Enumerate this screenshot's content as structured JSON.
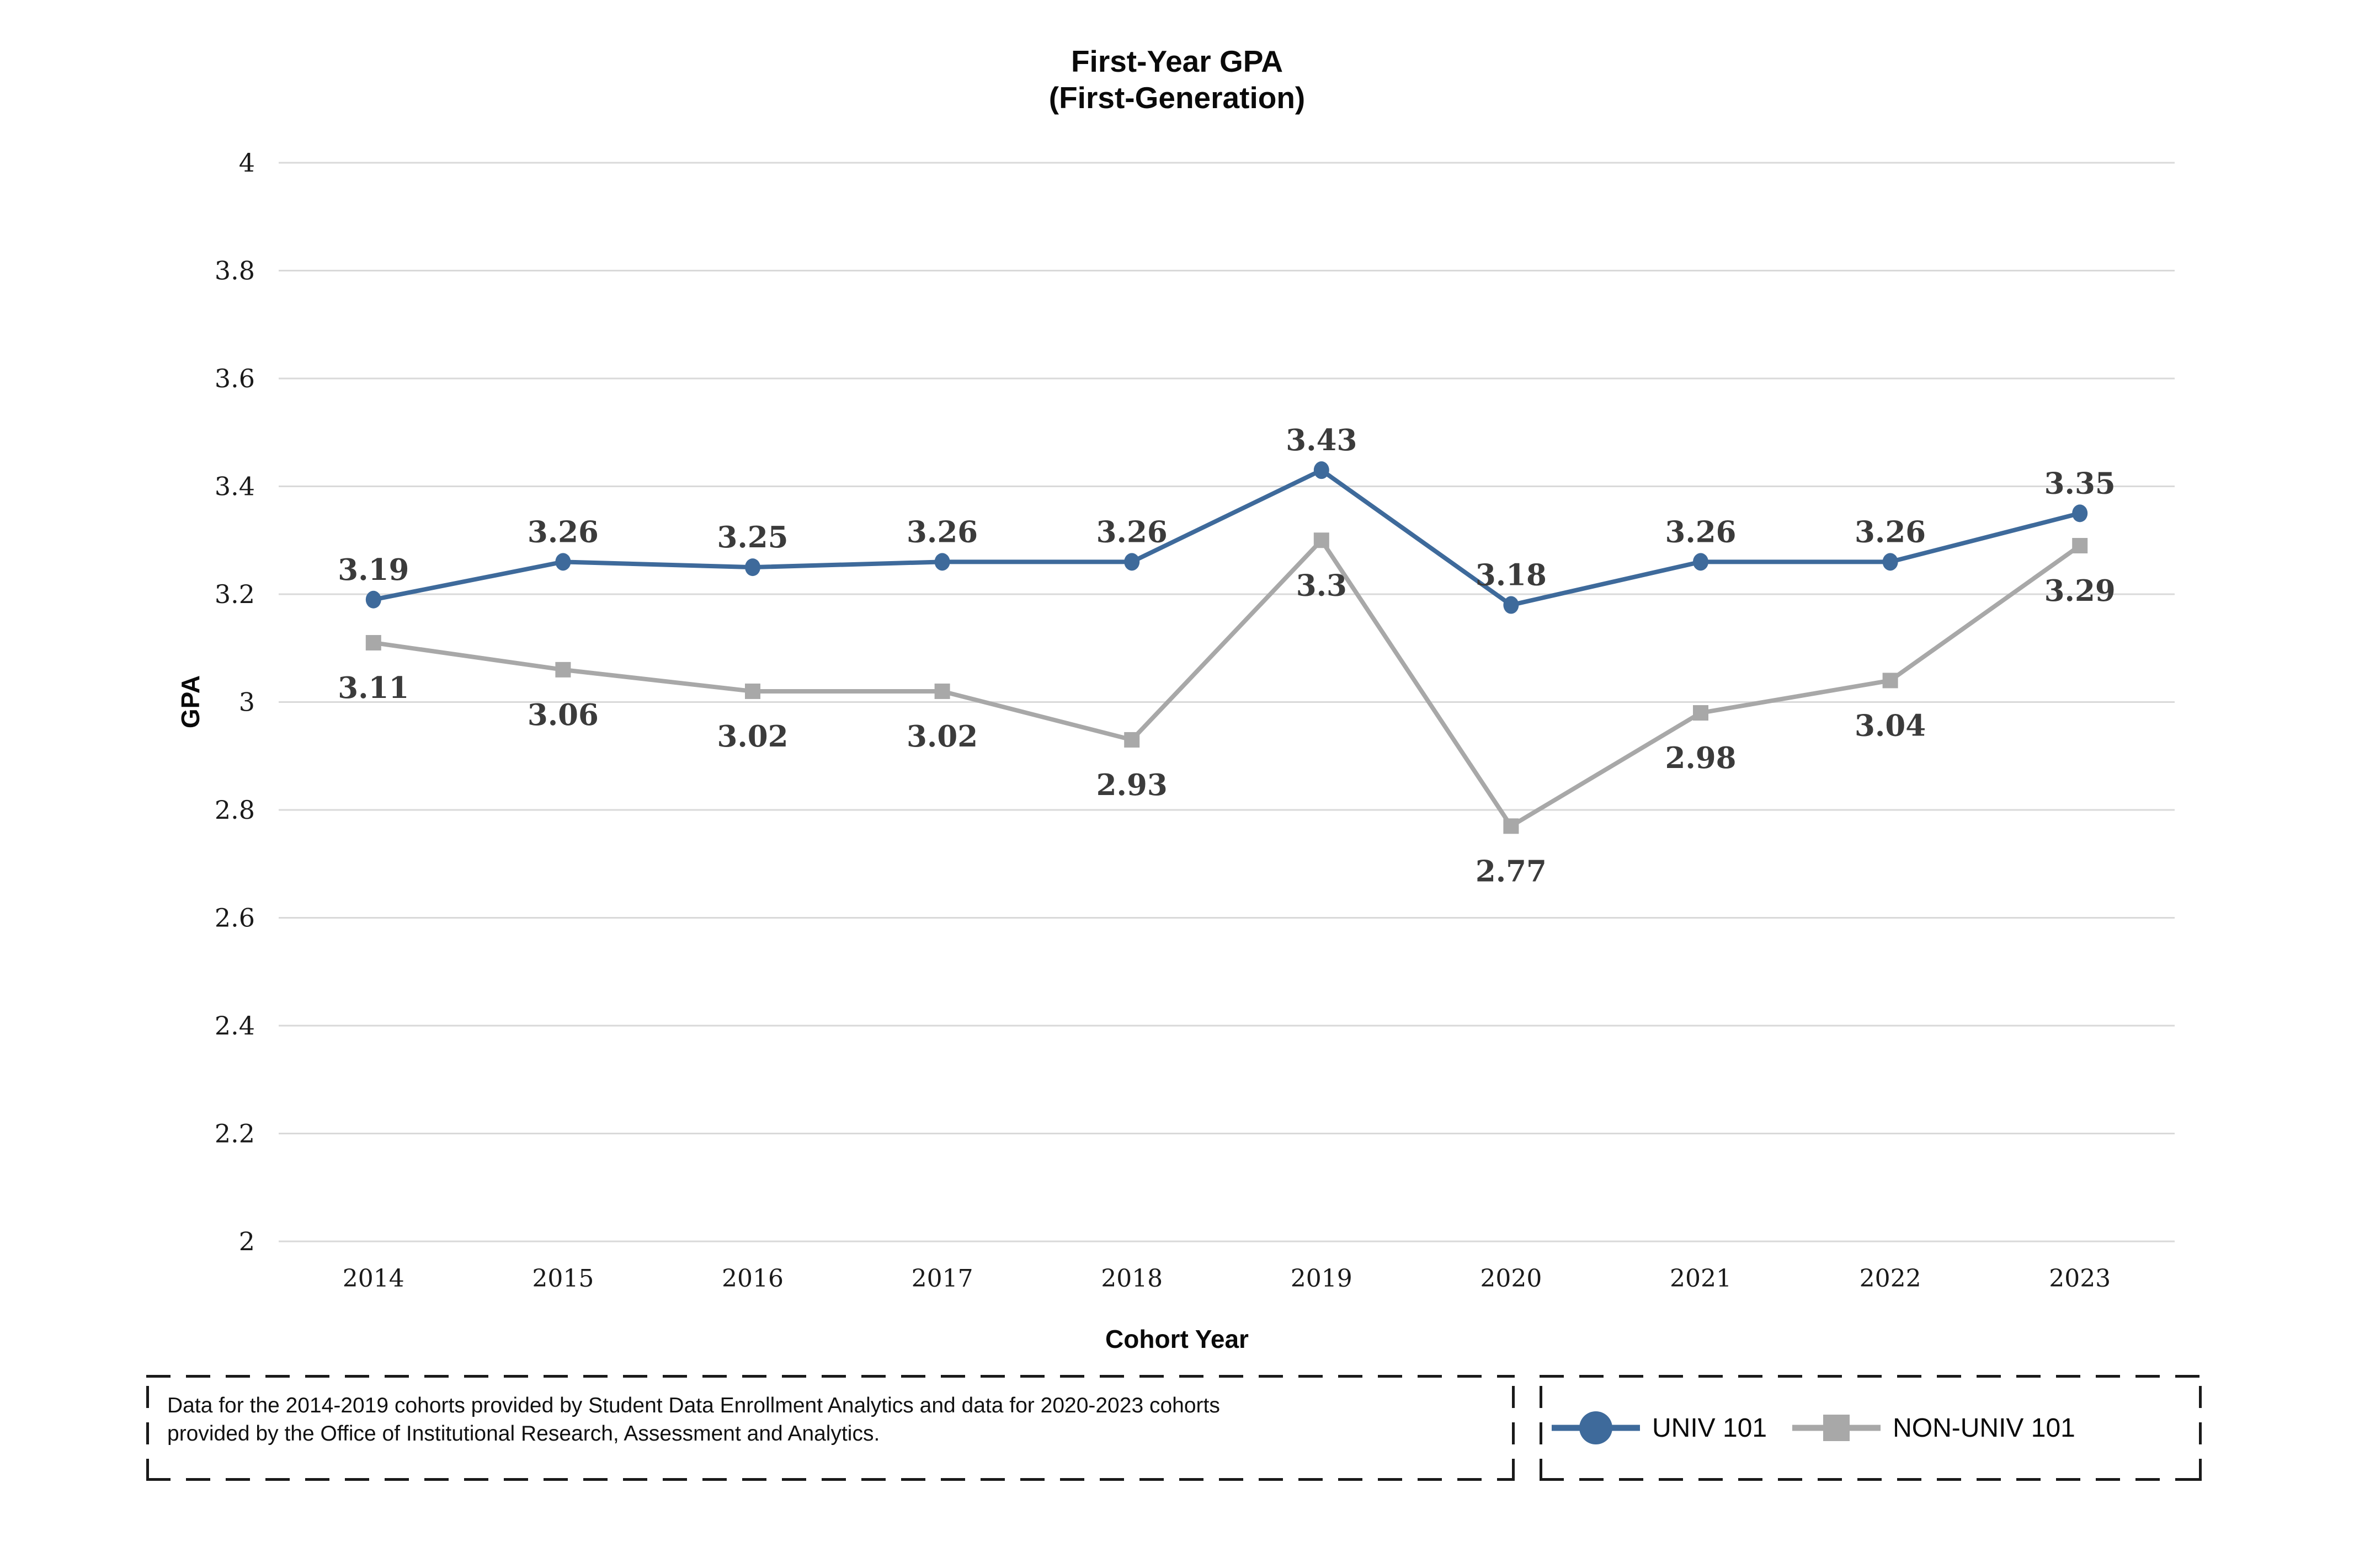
{
  "title": {
    "line1": "First-Year GPA",
    "line2": "(First-Generation)"
  },
  "chart_data": {
    "type": "line",
    "title": "First-Year GPA (First-Generation)",
    "xlabel": "Cohort Year",
    "ylabel": "GPA",
    "ylim": [
      2,
      4
    ],
    "ytick_step": 0.2,
    "y_tick_labels": [
      "4",
      "3.8",
      "3.6",
      "3.4",
      "3.2",
      "3",
      "2.8",
      "2.6",
      "2.4",
      "2.2",
      "2"
    ],
    "grid": true,
    "legend_position": "bottom-right",
    "categories": [
      "2014",
      "2015",
      "2016",
      "2017",
      "2018",
      "2019",
      "2020",
      "2021",
      "2022",
      "2023"
    ],
    "series": [
      {
        "name": "UNIV 101",
        "color": "#3E6A9B",
        "marker": "circle",
        "label_position": "above",
        "values": [
          3.19,
          3.26,
          3.25,
          3.26,
          3.26,
          3.43,
          3.18,
          3.26,
          3.26,
          3.35
        ]
      },
      {
        "name": "NON-UNIV 101",
        "color": "#A8A8A8",
        "marker": "square",
        "label_position": "below",
        "values": [
          3.11,
          3.06,
          3.02,
          3.02,
          2.93,
          3.3,
          2.77,
          2.98,
          3.04,
          3.29
        ]
      }
    ],
    "gridline_color": "#D9D9D9",
    "data_label_color": "#3B3B3B",
    "tick_label_color": "#1A1A1A"
  },
  "footnote": {
    "line1": "Data for the 2014-2019 cohorts provided by Student Data Enrollment Analytics and data for 2020-2023 cohorts",
    "line2": "provided by the Office of Institutional Research, Assessment and Analytics."
  },
  "legend": {
    "items": [
      {
        "label": "UNIV 101",
        "color": "#3E6A9B",
        "marker": "circle"
      },
      {
        "label": "NON-UNIV 101",
        "color": "#A8A8A8",
        "marker": "square"
      }
    ]
  }
}
